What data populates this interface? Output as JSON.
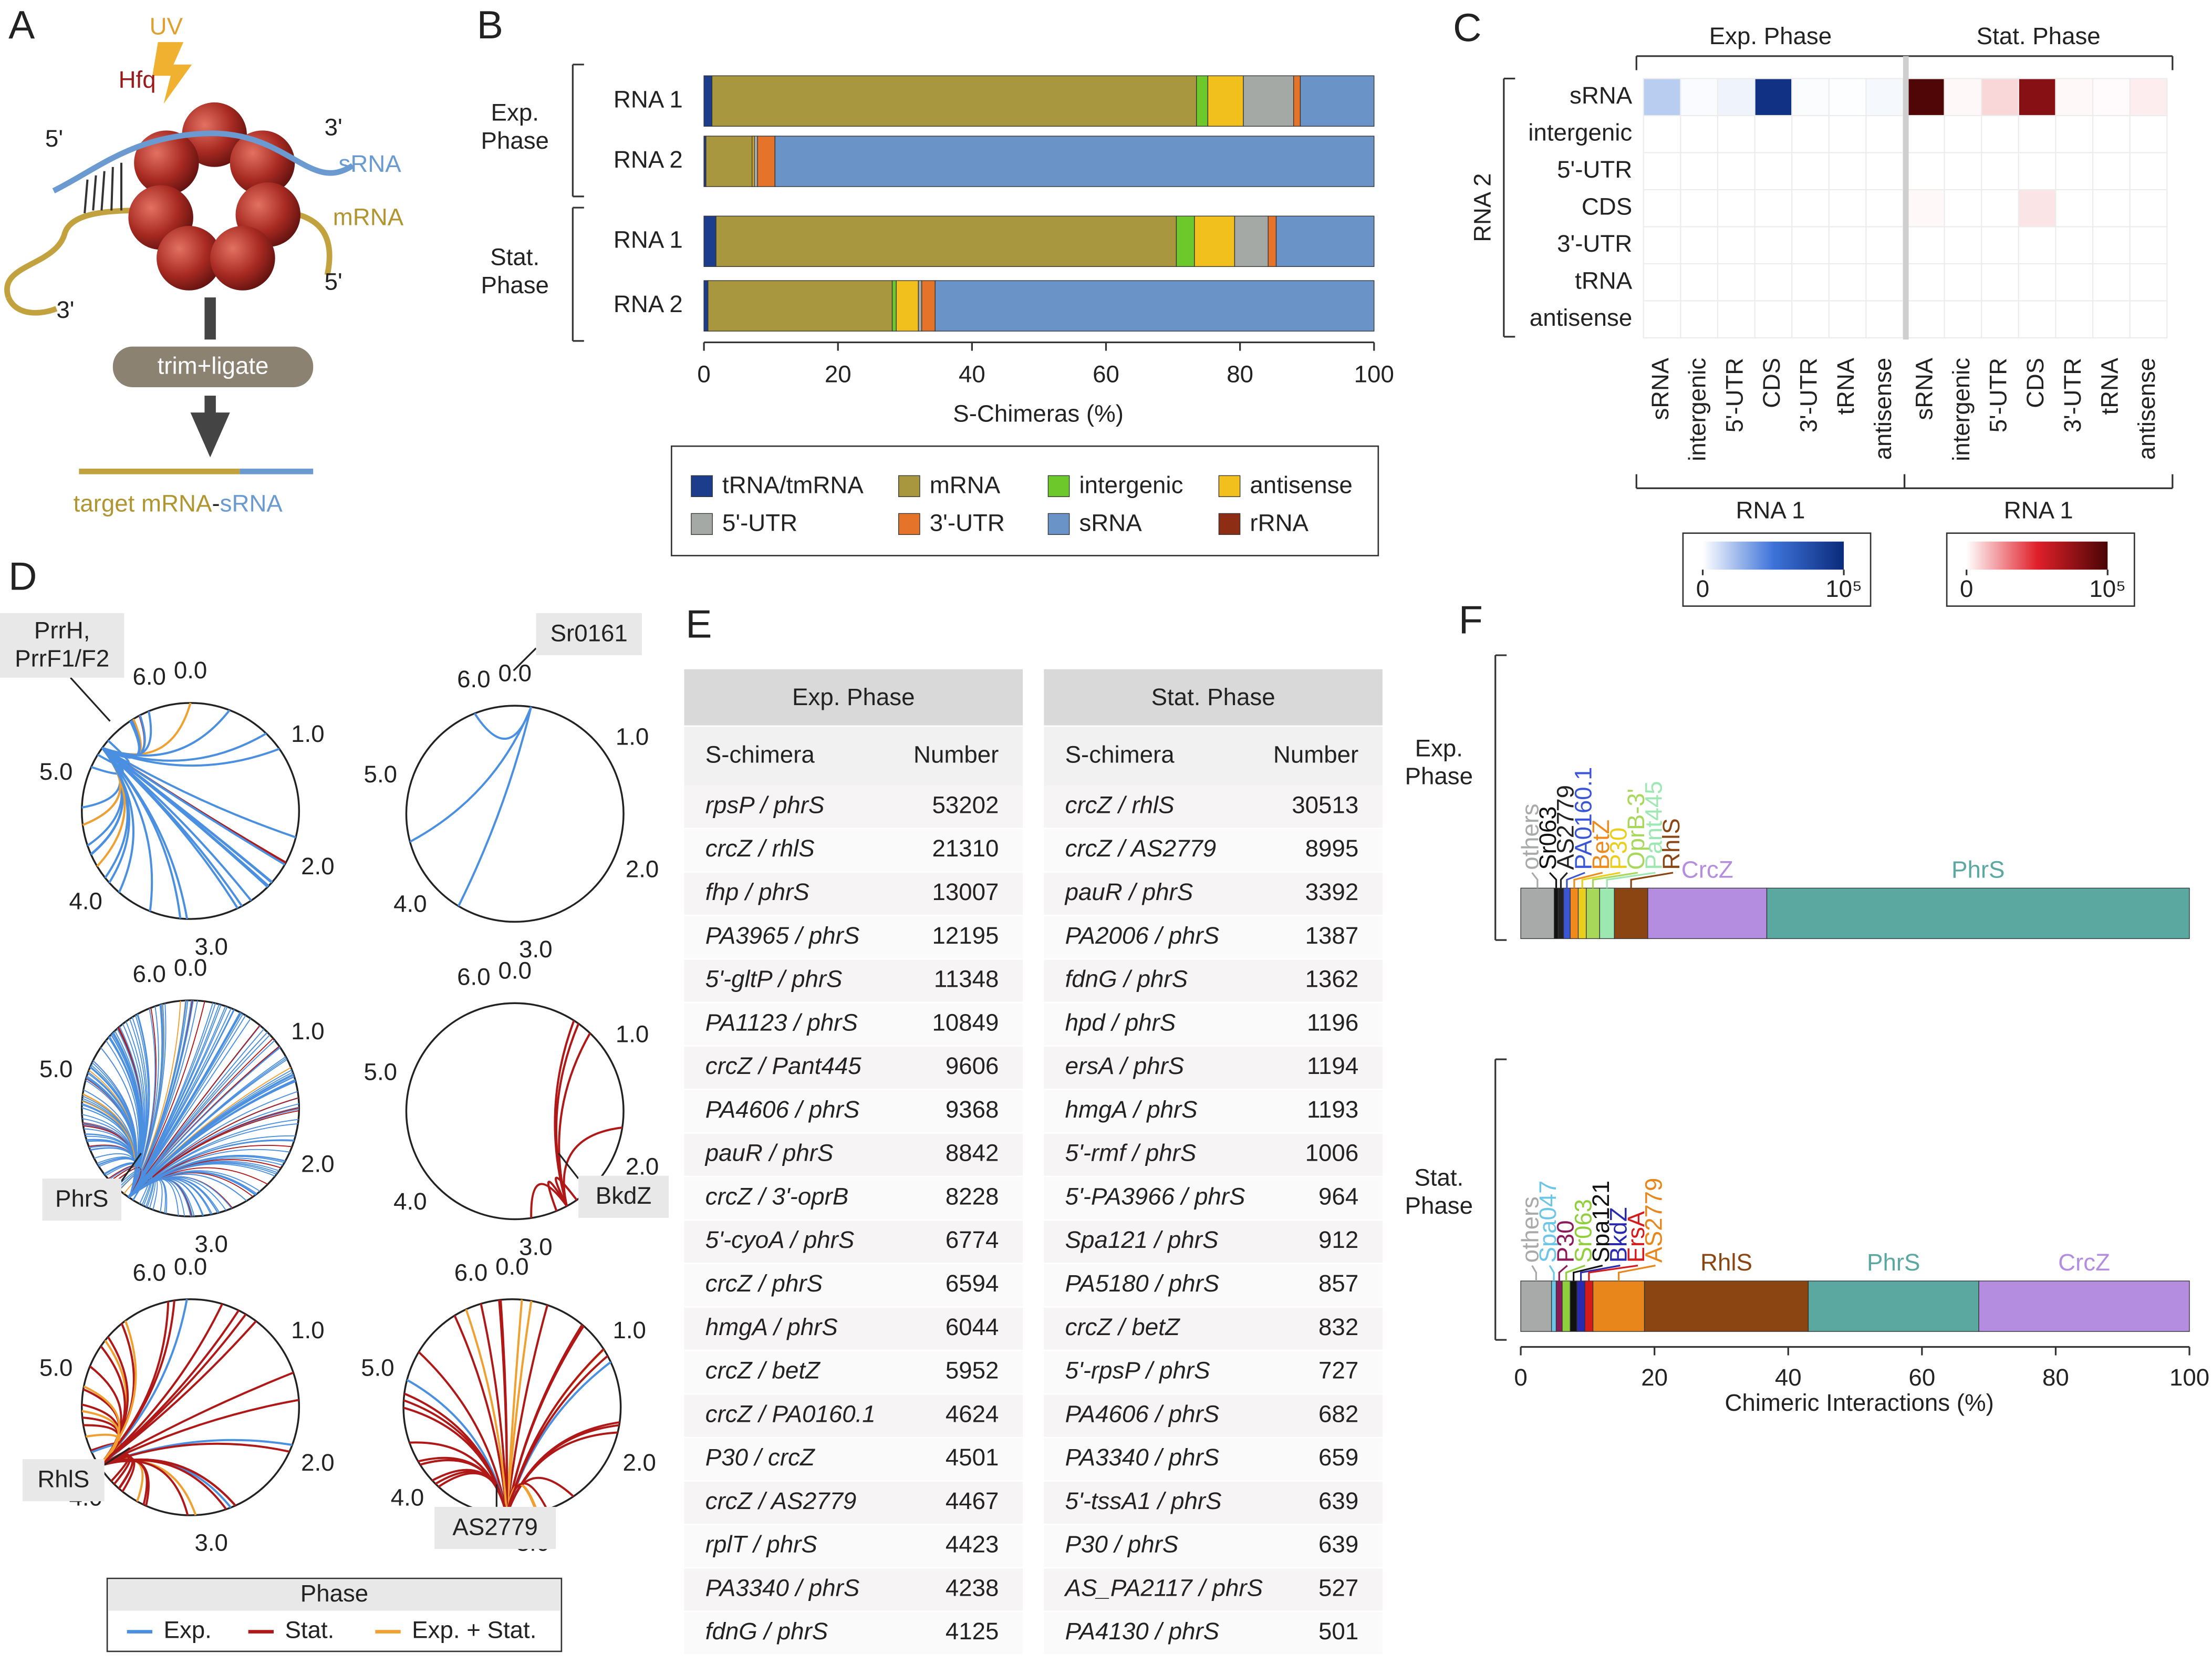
{
  "panel_labels": [
    "A",
    "B",
    "C",
    "D",
    "E",
    "F"
  ],
  "diagram": {
    "uv": "UV",
    "hfq": "Hfq",
    "srna_5": "5'",
    "srna_3": "3'",
    "srna": "sRNA",
    "mrna": "mRNA",
    "mrna_3": "3'",
    "mrna_5": "5'",
    "step": "trim+ligate",
    "product": [
      "target mRNA",
      "-",
      "sRNA"
    ]
  },
  "chart_data": [
    {
      "type": "stacked-bar",
      "xlabel": "S-Chimeras (%)",
      "groups": [
        "Exp. Phase",
        "Stat. Phase"
      ],
      "categories": [
        "RNA 1",
        "RNA 2",
        "RNA 1",
        "RNA 2"
      ],
      "xlim": [
        0,
        100
      ],
      "xticks": [
        0,
        20,
        40,
        60,
        80,
        100
      ],
      "legend": "bottom",
      "series": [
        {
          "name": "tRNA/tmRNA",
          "color": "#1c3d8c",
          "values": [
            1.2,
            0.3,
            1.8,
            0.6
          ]
        },
        {
          "name": "mRNA",
          "color": "#a8973f",
          "values": [
            72.3,
            6.9,
            68.7,
            27.5
          ]
        },
        {
          "name": "intergenic",
          "color": "#6dc92b",
          "values": [
            1.7,
            0,
            2.7,
            0.6
          ]
        },
        {
          "name": "antisense",
          "color": "#f2c01d",
          "values": [
            5.3,
            0.3,
            6.0,
            3.3
          ]
        },
        {
          "name": "5'-UTR",
          "color": "#a5a9a6",
          "values": [
            7.5,
            0.5,
            5.0,
            0.5
          ]
        },
        {
          "name": "3'-UTR",
          "color": "#e6732a",
          "values": [
            1.0,
            2.6,
            1.2,
            2.0
          ]
        },
        {
          "name": "sRNA",
          "color": "#6a93c7",
          "values": [
            11.0,
            89.4,
            14.6,
            65.5
          ]
        },
        {
          "name": "rRNA",
          "color": "#8c2d14",
          "values": [
            0,
            0,
            0,
            0
          ]
        }
      ]
    },
    {
      "type": "heatmap",
      "title": "Exp. Phase",
      "ylabel": "RNA 2",
      "xlabel": "RNA 1",
      "rows": [
        "sRNA",
        "intergenic",
        "5'-UTR",
        "CDS",
        "3'-UTR",
        "tRNA",
        "antisense"
      ],
      "columns": [
        "sRNA",
        "intergenic",
        "5'-UTR",
        "CDS",
        "3'-UTR",
        "tRNA",
        "antisense"
      ],
      "values": [
        [
          18000,
          1500,
          4000,
          95000,
          1000,
          500,
          2500
        ],
        [
          0,
          0,
          0,
          0,
          0,
          0,
          0
        ],
        [
          0,
          0,
          0,
          0,
          0,
          0,
          0
        ],
        [
          0,
          0,
          0,
          0,
          0,
          0,
          0
        ],
        [
          0,
          0,
          0,
          0,
          0,
          0,
          0
        ],
        [
          0,
          0,
          0,
          0,
          0,
          0,
          0
        ],
        [
          0,
          0,
          0,
          0,
          0,
          0,
          0
        ]
      ],
      "colors": [
        "#ffffff",
        "#3d73d9",
        "#0b2a7a"
      ],
      "clim": [
        0,
        100000
      ],
      "cticks": [
        0,
        {
          "value": 100000,
          "label": "10⁵"
        }
      ]
    },
    {
      "type": "heatmap",
      "title": "Stat. Phase",
      "xlabel": "RNA 1",
      "columns": [
        "sRNA",
        "intergenic",
        "5'-UTR",
        "CDS",
        "3'-UTR",
        "tRNA",
        "antisense"
      ],
      "values": [
        [
          98000,
          1500,
          9000,
          80000,
          1500,
          800,
          4000
        ],
        [
          0,
          0,
          0,
          0,
          0,
          0,
          0
        ],
        [
          0,
          0,
          0,
          0,
          0,
          0,
          0
        ],
        [
          1500,
          0,
          0,
          6000,
          0,
          0,
          0
        ],
        [
          0,
          0,
          0,
          0,
          0,
          0,
          0
        ],
        [
          0,
          0,
          0,
          0,
          0,
          0,
          0
        ],
        [
          0,
          0,
          0,
          0,
          0,
          0,
          0
        ]
      ],
      "colors": [
        "#ffffff",
        "#e0202a",
        "#4a0505"
      ],
      "clim": [
        0,
        100000
      ],
      "cticks": [
        0,
        {
          "value": 100000,
          "label": "10⁵"
        }
      ]
    },
    {
      "type": "labeled-stacked-bar",
      "xlabel": "Chimeric Interactions (%)",
      "xlim": [
        0,
        100
      ],
      "xticks": [
        0,
        20,
        40,
        60,
        80,
        100
      ],
      "groups": [
        {
          "name": "Exp. Phase",
          "segments": [
            {
              "name": "others",
              "color": "#a8aaa9",
              "value": 5.0
            },
            {
              "name": "Sr063",
              "color": "#111111",
              "value": 0.6
            },
            {
              "name": "AS2779",
              "color": "#222222",
              "value": 0.8
            },
            {
              "name": "PA0160.1",
              "color": "#3a56d6",
              "value": 1.0
            },
            {
              "name": "BetZ",
              "color": "#f08a1c",
              "value": 1.2
            },
            {
              "name": "P30",
              "color": "#e9cf1c",
              "value": 1.2
            },
            {
              "name": "OprB-3'",
              "color": "#a8d85a",
              "value": 2.0
            },
            {
              "name": "Pant445",
              "color": "#9de8b0",
              "value": 2.2
            },
            {
              "name": "RhlS",
              "color": "#8b4513",
              "value": 5.0
            },
            {
              "name": "CrcZ",
              "color": "#b48ce0",
              "value": 17.8
            },
            {
              "name": "PhrS",
              "color": "#5aa8a0",
              "value": 63.2
            }
          ]
        },
        {
          "name": "Stat. Phase",
          "segments": [
            {
              "name": "others",
              "color": "#a8aaa9",
              "value": 4.6
            },
            {
              "name": "Spa047",
              "color": "#6cc6e8",
              "value": 0.7
            },
            {
              "name": "P30",
              "color": "#8b1a5a",
              "value": 0.9
            },
            {
              "name": "Sr063",
              "color": "#8fcf3c",
              "value": 1.2
            },
            {
              "name": "Spa121",
              "color": "#111111",
              "value": 1.0
            },
            {
              "name": "BkdZ",
              "color": "#2a2ab0",
              "value": 1.2
            },
            {
              "name": "ErsA",
              "color": "#d61a1a",
              "value": 1.2
            },
            {
              "name": "AS2779",
              "color": "#e8861c",
              "value": 7.7
            },
            {
              "name": "RhlS",
              "color": "#8b4513",
              "value": 24.5
            },
            {
              "name": "PhrS",
              "color": "#5aa8a0",
              "value": 25.5
            },
            {
              "name": "CrcZ",
              "color": "#b48ce0",
              "value": 31.5
            }
          ]
        }
      ]
    }
  ],
  "chord_panel": {
    "xlim": [
      0,
      6.3
    ],
    "ticks": [
      {
        "value": 0,
        "label": "0.0"
      },
      {
        "value": 1,
        "label": "1.0"
      },
      {
        "value": 2,
        "label": "2.0"
      },
      {
        "value": 3,
        "label": "3.0"
      },
      {
        "value": 4,
        "label": "4.0"
      },
      {
        "value": 5,
        "label": "5.0"
      },
      {
        "value": 6,
        "label": "6.0"
      }
    ],
    "circles": [
      "PrrH, PrrF1/F2",
      "Sr0161",
      "PhrS",
      "BkdZ",
      "RhlS",
      "AS2779"
    ],
    "legend": {
      "title": "Phase",
      "entries": [
        {
          "name": "Exp.",
          "color": "#4a8fe0"
        },
        {
          "name": "Stat.",
          "color": "#b01818"
        },
        {
          "name": "Exp. + Stat.",
          "color": "#f0a030"
        }
      ]
    }
  },
  "tables": [
    {
      "title": "Exp. Phase",
      "columns": [
        "S-chimera",
        "Number"
      ],
      "rows": [
        [
          "rpsP / phrS",
          53202
        ],
        [
          "crcZ / rhlS",
          21310
        ],
        [
          "fhp / phrS",
          13007
        ],
        [
          "PA3965 / phrS",
          12195
        ],
        [
          "5'-gltP / phrS",
          11348
        ],
        [
          "PA1123 / phrS",
          10849
        ],
        [
          "crcZ / Pant445",
          9606
        ],
        [
          "PA4606 / phrS",
          9368
        ],
        [
          "pauR / phrS",
          8842
        ],
        [
          "crcZ / 3'-oprB",
          8228
        ],
        [
          "5'-cyoA / phrS",
          6774
        ],
        [
          "crcZ / phrS",
          6594
        ],
        [
          "hmgA / phrS",
          6044
        ],
        [
          "crcZ / betZ",
          5952
        ],
        [
          "crcZ / PA0160.1",
          4624
        ],
        [
          "P30 / crcZ",
          4501
        ],
        [
          "crcZ / AS2779",
          4467
        ],
        [
          "rplT / phrS",
          4423
        ],
        [
          "PA3340 / phrS",
          4238
        ],
        [
          "fdnG / phrS",
          4125
        ]
      ]
    },
    {
      "title": "Stat. Phase",
      "columns": [
        "S-chimera",
        "Number"
      ],
      "rows": [
        [
          "crcZ / rhlS",
          30513
        ],
        [
          "crcZ / AS2779",
          8995
        ],
        [
          "pauR / phrS",
          3392
        ],
        [
          "PA2006 / phrS",
          1387
        ],
        [
          "fdnG / phrS",
          1362
        ],
        [
          "hpd / phrS",
          1196
        ],
        [
          "ersA / phrS",
          1194
        ],
        [
          "hmgA / phrS",
          1193
        ],
        [
          "5'-rmf / phrS",
          1006
        ],
        [
          "5'-PA3966 / phrS",
          964
        ],
        [
          "Spa121 / phrS",
          912
        ],
        [
          "PA5180 / phrS",
          857
        ],
        [
          "crcZ / betZ",
          832
        ],
        [
          "5'-rpsP / phrS",
          727
        ],
        [
          "PA4606 / phrS",
          682
        ],
        [
          "PA3340 / phrS",
          659
        ],
        [
          "5'-tssA1 / phrS",
          639
        ],
        [
          "P30 / phrS",
          639
        ],
        [
          "AS_PA2117 / phrS",
          527
        ],
        [
          "PA4130 / phrS",
          501
        ]
      ]
    }
  ]
}
